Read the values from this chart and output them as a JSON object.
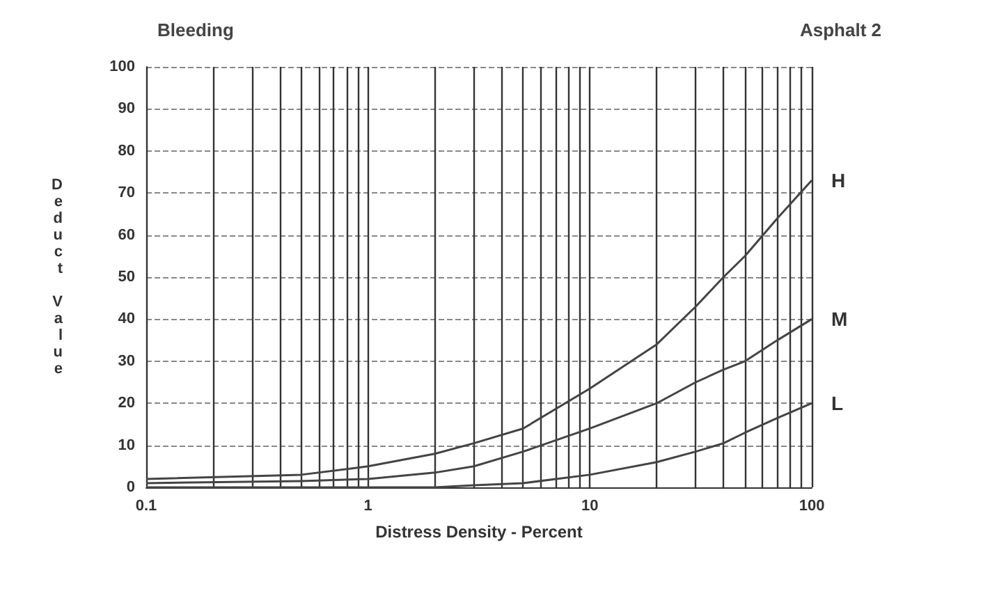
{
  "chart_data": {
    "type": "line",
    "title": "Bleeding",
    "subtitle": "Asphalt 2",
    "xlabel": "Distress Density - Percent",
    "ylabel": "Deduct Value",
    "x": [
      0.1,
      0.5,
      1,
      2,
      3,
      5,
      10,
      20,
      30,
      40,
      50,
      70,
      100
    ],
    "series": [
      {
        "name": "H",
        "color": "#444444",
        "values": [
          2,
          3,
          5,
          8,
          10.5,
          14,
          23.5,
          34,
          43,
          50,
          55,
          64,
          73
        ]
      },
      {
        "name": "M",
        "color": "#444444",
        "values": [
          1,
          1.5,
          2,
          3.5,
          5,
          8.5,
          14,
          20,
          25,
          28,
          30,
          35,
          40
        ]
      },
      {
        "name": "L",
        "color": "#444444",
        "values": [
          0,
          0,
          0,
          0,
          0.5,
          1,
          3,
          6,
          8.5,
          10.5,
          13,
          16.5,
          20
        ]
      }
    ],
    "log": "x",
    "xlim": [
      0.1,
      100
    ],
    "ylim": [
      0,
      100
    ],
    "xticks": [
      0.1,
      {
        "value": 0.2,
        "label": null
      },
      {
        "value": 0.3,
        "label": null
      },
      {
        "value": 0.4,
        "label": null
      },
      {
        "value": 0.5,
        "label": null
      },
      {
        "value": 0.6,
        "label": null
      },
      {
        "value": 0.7,
        "label": null
      },
      {
        "value": 0.8,
        "label": null
      },
      {
        "value": 0.9,
        "label": null
      },
      1,
      {
        "value": 2,
        "label": null
      },
      {
        "value": 3,
        "label": null
      },
      {
        "value": 4,
        "label": null
      },
      {
        "value": 5,
        "label": null
      },
      {
        "value": 6,
        "label": null
      },
      {
        "value": 7,
        "label": null
      },
      {
        "value": 8,
        "label": null
      },
      {
        "value": 9,
        "label": null
      },
      10,
      {
        "value": 20,
        "label": null
      },
      {
        "value": 30,
        "label": null
      },
      {
        "value": 40,
        "label": null
      },
      {
        "value": 50,
        "label": null
      },
      {
        "value": 60,
        "label": null
      },
      {
        "value": 70,
        "label": null
      },
      {
        "value": 80,
        "label": null
      },
      {
        "value": 90,
        "label": null
      },
      100
    ],
    "yticks": [
      0,
      10,
      20,
      30,
      40,
      50,
      60,
      70,
      80,
      90,
      100
    ],
    "grid": true,
    "line_style": "solid",
    "legend": false
  }
}
